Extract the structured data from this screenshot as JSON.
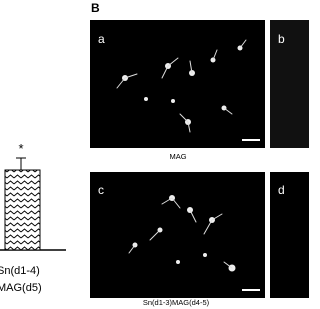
{
  "figure": {
    "panel_label": "B",
    "bar_chart": {
      "significance": "*",
      "category_lines": [
        "Sn(d1-4)",
        "MAG(d5)"
      ]
    },
    "panels": [
      {
        "label": "a"
      },
      {
        "label": "b"
      },
      {
        "label": "c"
      },
      {
        "label": "d"
      }
    ],
    "captions": [
      "MAG",
      "Sn(d1-3)MAG(d4-5)"
    ]
  }
}
